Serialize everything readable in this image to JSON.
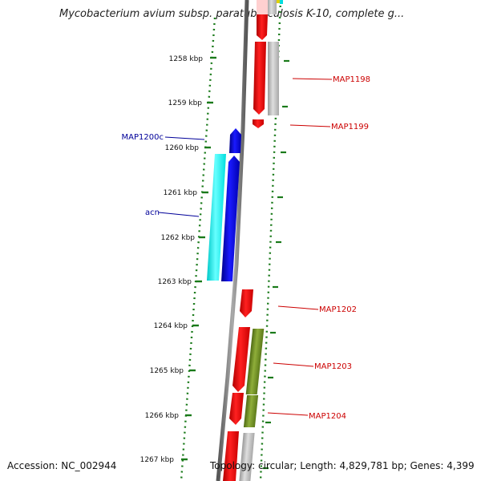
{
  "title": "Mycobacterium avium subsp. paratuberculosis K-10, complete g...",
  "footer": {
    "accession": "Accession: NC_002944",
    "summary": "Topology: circular; Length: 4,829,781 bp; Genes: 4,399"
  },
  "colors": {
    "forward_label": "#cc0000",
    "reverse_label": "#000099",
    "tick": "#1a7a1a",
    "backbone": "#777777"
  },
  "scale": {
    "unit": "kbp",
    "ticks": [
      {
        "label": "1258 kbp",
        "value": 1258
      },
      {
        "label": "1259 kbp",
        "value": 1259
      },
      {
        "label": "1260 kbp",
        "value": 1260
      },
      {
        "label": "1261 kbp",
        "value": 1261
      },
      {
        "label": "1262 kbp",
        "value": 1262
      },
      {
        "label": "1263 kbp",
        "value": 1263
      },
      {
        "label": "1264 kbp",
        "value": 1264
      },
      {
        "label": "1265 kbp",
        "value": 1265
      },
      {
        "label": "1266 kbp",
        "value": 1266
      },
      {
        "label": "1267 kbp",
        "value": 1267
      }
    ]
  },
  "gene_labels": [
    {
      "text": "MAP1198",
      "strand": "forward"
    },
    {
      "text": "MAP1199",
      "strand": "forward"
    },
    {
      "text": "MAP1200c",
      "strand": "reverse"
    },
    {
      "text": "acn",
      "strand": "reverse"
    },
    {
      "text": "MAP1202",
      "strand": "forward"
    },
    {
      "text": "MAP1203",
      "strand": "forward"
    },
    {
      "text": "MAP1204",
      "strand": "forward"
    }
  ],
  "features": [
    {
      "name": "forward-gene-top",
      "color": "#ff0000"
    },
    {
      "name": "gene-map1198",
      "color": "#ff0000"
    },
    {
      "name": "gene-map1198-companion",
      "color": "#bbbbbb"
    },
    {
      "name": "gene-map1199",
      "color": "#ff0000"
    },
    {
      "name": "gene-map1200c",
      "color": "#0000ee"
    },
    {
      "name": "gene-acn-cds",
      "color": "#0000ee"
    },
    {
      "name": "gene-acn-region",
      "color": "#00ffff"
    },
    {
      "name": "gene-map1202",
      "color": "#ff0000"
    },
    {
      "name": "gene-map1203",
      "color": "#ff0000"
    },
    {
      "name": "gene-map1203-companion",
      "color": "#6b8e23"
    },
    {
      "name": "gene-map1204",
      "color": "#ff0000"
    },
    {
      "name": "gene-map1204-companion",
      "color": "#6b8e23"
    },
    {
      "name": "gene-bottom",
      "color": "#ff0000"
    },
    {
      "name": "gene-bottom-companion",
      "color": "#bbbbbb"
    }
  ]
}
